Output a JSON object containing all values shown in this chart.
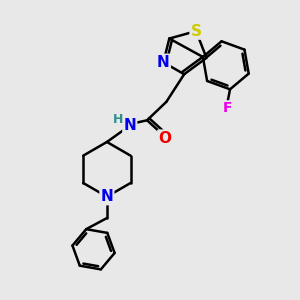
{
  "bg_color": "#e8e8e8",
  "bond_color": "#000000",
  "bond_width": 1.8,
  "atom_colors": {
    "S": "#cccc00",
    "N": "#0000ee",
    "O": "#ee0000",
    "F": "#ee00ee",
    "H": "#2f8f8f",
    "C": "#000000"
  },
  "font_size": 10,
  "xlim": [
    0,
    10
  ],
  "ylim": [
    0,
    10
  ]
}
